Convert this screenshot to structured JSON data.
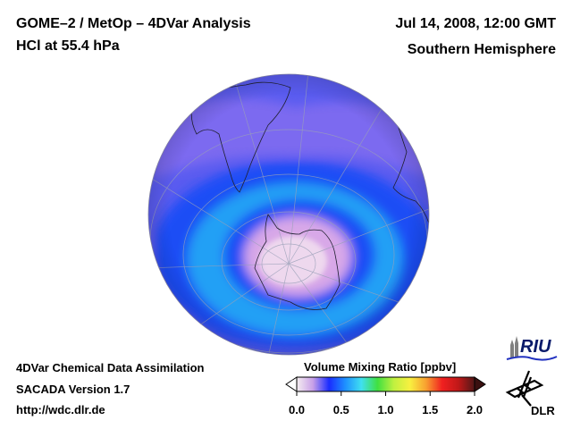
{
  "header": {
    "title_line1": "GOME–2 / MetOp – 4DVar Analysis",
    "title_line2": "HCl at 55.4 hPa",
    "date": "Jul 14, 2008, 12:00 GMT",
    "region": "Southern Hemisphere"
  },
  "footer": {
    "line1": "4DVar Chemical Data Assimilation",
    "line2": "SACADA Version 1.7",
    "line3": "http://wdc.dlr.de"
  },
  "colorbar": {
    "title": "Volume Mixing Ratio [ppbv]",
    "min": 0.0,
    "max": 2.0,
    "ticks": [
      "0.0",
      "0.5",
      "1.0",
      "1.5",
      "2.0"
    ],
    "extend": "both",
    "colors": [
      "#f5eef0",
      "#c8a0e8",
      "#1a2cff",
      "#1e90ff",
      "#40e0f0",
      "#40e040",
      "#c0f040",
      "#f8f040",
      "#f8a030",
      "#f02020",
      "#c01818",
      "#501818"
    ]
  },
  "map": {
    "projection": "orthographic",
    "hemisphere": "south",
    "field_colors": {
      "background": "#5a5cf0",
      "lavender": "#8a70f0",
      "blue_band": "#1f4df5",
      "cyan_band": "#22a0f5",
      "vortex_core": "#eed8ee",
      "vortex_edge": "#d8a8e8"
    }
  },
  "logos": {
    "riu_text": "RIU",
    "dlr_text": "DLR"
  }
}
